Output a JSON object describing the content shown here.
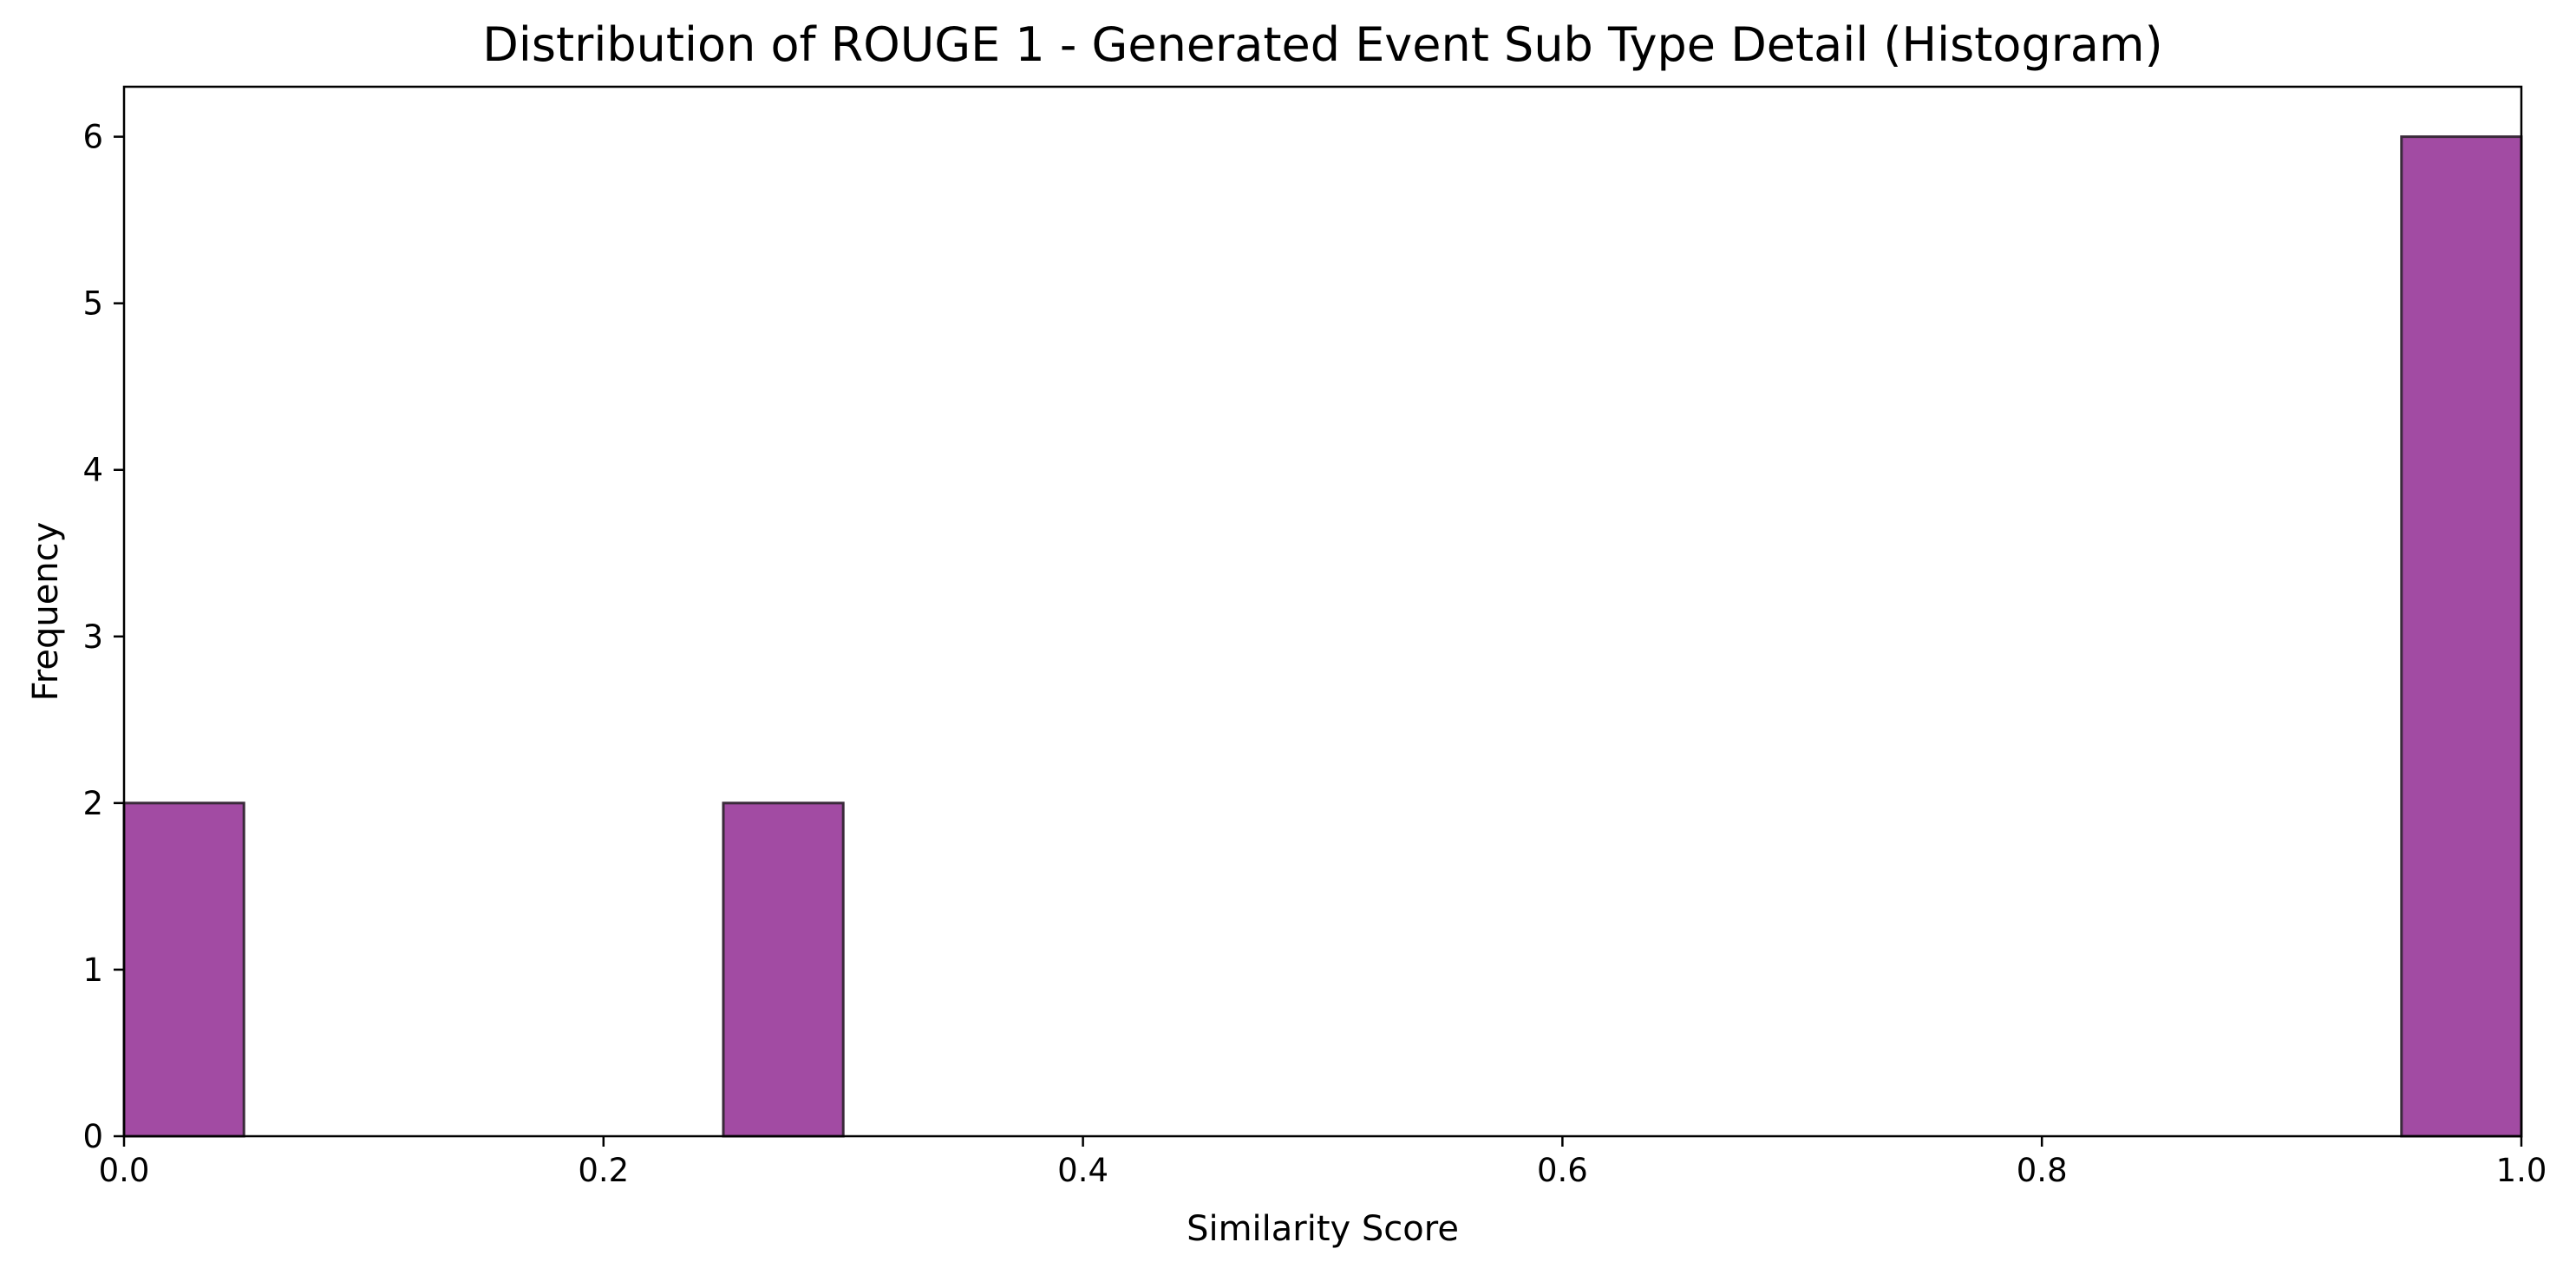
{
  "chart_data": {
    "type": "bar",
    "title": "Distribution of ROUGE 1 - Generated Event Sub Type Detail (Histogram)",
    "xlabel": "Similarity Score",
    "ylabel": "Frequency",
    "xlim": [
      0.0,
      1.0
    ],
    "ylim": [
      0,
      6.3
    ],
    "xticks": [
      0.0,
      0.2,
      0.4,
      0.6,
      0.8,
      1.0
    ],
    "xtick_labels": [
      "0.0",
      "0.2",
      "0.4",
      "0.6",
      "0.8",
      "1.0"
    ],
    "yticks": [
      0,
      1,
      2,
      3,
      4,
      5,
      6
    ],
    "ytick_labels": [
      "0",
      "1",
      "2",
      "3",
      "4",
      "5",
      "6"
    ],
    "bins": [
      {
        "x0": 0.0,
        "x1": 0.05,
        "count": 2
      },
      {
        "x0": 0.25,
        "x1": 0.3,
        "count": 2
      },
      {
        "x0": 0.95,
        "x1": 1.0,
        "count": 6
      }
    ],
    "bar_color": "#a24ba3",
    "edge_color": "#3a2a3a",
    "grid": false,
    "legend": "none"
  }
}
